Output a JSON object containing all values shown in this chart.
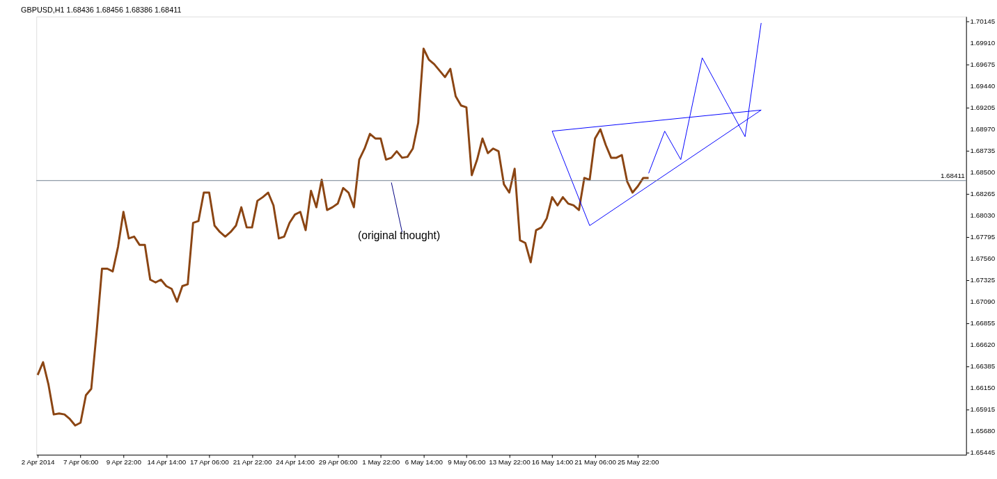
{
  "chart_data": {
    "type": "line",
    "title": "GBPUSD,H1  1.68436 1.68456 1.68386 1.68411",
    "categories": [
      "2 Apr 2014",
      null,
      null,
      null,
      null,
      null,
      null,
      null,
      "7 Apr 06:00",
      null,
      null,
      null,
      null,
      null,
      null,
      null,
      "9 Apr 22:00",
      null,
      null,
      null,
      null,
      null,
      null,
      null,
      "14 Apr 14:00",
      null,
      null,
      null,
      null,
      null,
      null,
      null,
      "17 Apr 06:00",
      null,
      null,
      null,
      null,
      null,
      null,
      null,
      "21 Apr 22:00",
      null,
      null,
      null,
      null,
      null,
      null,
      null,
      "24 Apr 14:00",
      null,
      null,
      null,
      null,
      null,
      null,
      null,
      "29 Apr 06:00",
      null,
      null,
      null,
      null,
      null,
      null,
      null,
      "1 May 22:00",
      null,
      null,
      null,
      null,
      null,
      null,
      null,
      "6 May 14:00",
      null,
      null,
      null,
      null,
      null,
      null,
      null,
      "9 May 06:00",
      null,
      null,
      null,
      null,
      null,
      null,
      null,
      "13 May 22:00",
      null,
      null,
      null,
      null,
      null,
      null,
      null,
      "16 May 14:00",
      null,
      null,
      null,
      null,
      null,
      null,
      null,
      "21 May 06:00",
      null,
      null,
      null,
      null,
      null,
      null,
      null,
      "25 May 22:00",
      null,
      null,
      null,
      null,
      null,
      null,
      null,
      null,
      null,
      null,
      null,
      null,
      null,
      null,
      null,
      null,
      null,
      null,
      null,
      null,
      null,
      null,
      null,
      null,
      null,
      null,
      null,
      null,
      null,
      null,
      null,
      null,
      null,
      null,
      null,
      null,
      null,
      null,
      null,
      null,
      null,
      null,
      null,
      null,
      null,
      null,
      null,
      null,
      null,
      null,
      null,
      null,
      null,
      null,
      null,
      null,
      null,
      null,
      null,
      null,
      null
    ],
    "ylim": [
      1.6542,
      1.702
    ],
    "yticks": [
      {
        "value": 1.65445,
        "label": "1.65445"
      },
      {
        "value": 1.6568,
        "label": "1.65680"
      },
      {
        "value": 1.65915,
        "label": "1.65915"
      },
      {
        "value": 1.6615,
        "label": "1.66150"
      },
      {
        "value": 1.66385,
        "label": "1.66385"
      },
      {
        "value": 1.6662,
        "label": "1.66620"
      },
      {
        "value": 1.66855,
        "label": "1.66855"
      },
      {
        "value": 1.6709,
        "label": "1.67090"
      },
      {
        "value": 1.67325,
        "label": "1.67325"
      },
      {
        "value": 1.6756,
        "label": "1.67560"
      },
      {
        "value": 1.67795,
        "label": "1.67795"
      },
      {
        "value": 1.6803,
        "label": "1.68030"
      },
      {
        "value": 1.68265,
        "label": "1.68265"
      },
      {
        "value": 1.685,
        "label": "1.68500"
      },
      {
        "value": 1.68735,
        "label": "1.68735"
      },
      {
        "value": 1.6897,
        "label": "1.68970"
      },
      {
        "value": 1.69205,
        "label": "1.69205"
      },
      {
        "value": 1.6944,
        "label": "1.69440"
      },
      {
        "value": 1.69675,
        "label": "1.69675"
      },
      {
        "value": 1.6991,
        "label": "1.69910"
      },
      {
        "value": 1.70145,
        "label": "1.70145"
      }
    ],
    "grid": false,
    "line_style": "solid",
    "marker": "none",
    "ref_lines": [
      {
        "axis": "y",
        "value": 1.68411,
        "label": "1.68411",
        "color": "#708090"
      }
    ],
    "annotations": [
      "(original thought)"
    ],
    "series": [
      {
        "color": "#8b4513",
        "values": [
          1.6629,
          1.6643,
          1.6619,
          1.6586,
          1.6587,
          1.6586,
          1.6581,
          1.6574,
          1.6577,
          1.6607,
          1.6614,
          1.6676,
          1.6745,
          1.6745,
          1.6742,
          1.6769,
          1.6807,
          1.6778,
          1.678,
          1.6771,
          1.6771,
          1.6733,
          1.673,
          1.6733,
          1.6726,
          1.6723,
          1.6709,
          1.6726,
          1.6728,
          1.6795,
          1.6797,
          1.6828,
          1.6828,
          1.6792,
          1.6785,
          1.678,
          1.6785,
          1.6792,
          1.6812,
          1.679,
          1.679,
          1.6819,
          1.6823,
          1.6828,
          1.6814,
          1.6778,
          1.678,
          1.6795,
          1.6804,
          1.6807,
          1.6787,
          1.683,
          1.6812,
          1.6842,
          1.6809,
          1.6812,
          1.6816,
          1.6833,
          1.6828,
          1.6812,
          1.6864,
          1.6876,
          1.6892,
          1.6887,
          1.6887,
          1.6864,
          1.6866,
          1.6873,
          1.6866,
          1.6867,
          1.6876,
          1.6904,
          1.6985,
          1.6973,
          1.6968,
          1.6961,
          1.6954,
          1.6963,
          1.6933,
          1.6923,
          1.6921,
          1.6847,
          1.6864,
          1.6887,
          1.6871,
          1.6876,
          1.6873,
          1.6837,
          1.6828,
          1.6854,
          1.6776,
          1.6773,
          1.6752,
          1.6787,
          1.679,
          1.68,
          1.6823,
          1.6814,
          1.6823,
          1.6816,
          1.6814,
          1.6809,
          1.6844,
          1.6842,
          1.6887,
          1.6897,
          1.688,
          1.6866,
          1.6866,
          1.6869,
          1.684,
          1.6828,
          1.6835,
          1.6844,
          1.6844,
          null,
          null,
          null,
          null,
          null,
          null,
          null,
          null,
          null,
          null,
          null,
          null,
          null,
          null,
          null,
          null,
          null,
          null,
          null,
          null,
          null,
          null,
          null,
          null,
          null,
          null,
          null,
          null,
          null,
          null,
          null,
          null,
          null,
          null,
          null,
          null,
          null,
          null,
          null,
          null,
          null,
          null,
          null,
          null,
          null,
          null,
          null,
          null,
          null,
          null,
          null,
          null,
          null,
          null,
          null,
          null,
          null,
          null,
          null
        ]
      },
      {
        "type": "line",
        "color": "#0000ff",
        "values": [
          null,
          null,
          null,
          null,
          null,
          null,
          null,
          null,
          null,
          null,
          null,
          null,
          null,
          null,
          null,
          null,
          null,
          null,
          null,
          null,
          null,
          null,
          null,
          null,
          null,
          null,
          null,
          null,
          null,
          null,
          null,
          null,
          null,
          null,
          null,
          null,
          null,
          null,
          null,
          null,
          null,
          null,
          null,
          null,
          null,
          null,
          null,
          null,
          null,
          null,
          null,
          null,
          null,
          null,
          null,
          null,
          null,
          null,
          null,
          null,
          null,
          null,
          null,
          null,
          null,
          null,
          null,
          null,
          null,
          null,
          null,
          null,
          null,
          null,
          null,
          null,
          null,
          null,
          null,
          null,
          null,
          null,
          null,
          null,
          null,
          null,
          null,
          null,
          null,
          null,
          null,
          null,
          null,
          null,
          null,
          null,
          1.6895,
          null,
          null,
          null,
          null,
          null,
          null,
          1.6792,
          null,
          null,
          null,
          null,
          null,
          null,
          null,
          null,
          null,
          null,
          null,
          null,
          null,
          null,
          null,
          null,
          null,
          null,
          null,
          null,
          null,
          null,
          null,
          null,
          null,
          null,
          null,
          null,
          null,
          null,
          null,
          null,
          null,
          null,
          null,
          null,
          null,
          null,
          null,
          null,
          null,
          null,
          null,
          null,
          null,
          null,
          null,
          null,
          null,
          null,
          null,
          null,
          null,
          null,
          null,
          null,
          null,
          null,
          null,
          null,
          null,
          null,
          null,
          null,
          null,
          null,
          null,
          null,
          null,
          null
        ]
      },
      {
        "type": "line",
        "color": "#0000ff",
        "values": [
          null,
          null,
          null,
          null,
          null,
          null,
          null,
          null,
          null,
          null,
          null,
          null,
          null,
          null,
          null,
          null,
          null,
          null,
          null,
          null,
          null,
          null,
          null,
          null,
          null,
          null,
          null,
          null,
          null,
          null,
          null,
          null,
          null,
          null,
          null,
          null,
          null,
          null,
          null,
          null,
          null,
          null,
          null,
          null,
          null,
          null,
          null,
          null,
          null,
          null,
          null,
          null,
          null,
          null,
          null,
          null,
          null,
          null,
          null,
          null,
          null,
          null,
          null,
          null,
          null,
          null,
          null,
          null,
          null,
          null,
          null,
          null,
          null,
          null,
          null,
          null,
          null,
          null,
          null,
          null,
          null,
          null,
          null,
          null,
          null,
          null,
          null,
          null,
          null,
          null,
          null,
          null,
          null,
          null,
          null,
          null,
          1.6895,
          null,
          null,
          null,
          null,
          null,
          null,
          null,
          null,
          null,
          null,
          null,
          null,
          null,
          null,
          null,
          null,
          null,
          null,
          null,
          null,
          null,
          null,
          null,
          null,
          null,
          null,
          null,
          null,
          null,
          null,
          null,
          null,
          null,
          null,
          null,
          null,
          null,
          null,
          1.6918,
          null,
          null,
          null,
          null,
          null,
          null,
          null,
          null,
          null,
          null,
          null,
          null,
          null,
          null,
          null,
          null,
          null,
          null,
          null,
          null,
          null,
          null,
          null,
          null,
          null,
          null,
          null,
          null,
          null,
          null,
          null,
          null,
          null,
          null,
          null,
          null,
          null,
          null
        ]
      },
      {
        "type": "line",
        "color": "#0000ff",
        "values": [
          null,
          null,
          null,
          null,
          null,
          null,
          null,
          null,
          null,
          null,
          null,
          null,
          null,
          null,
          null,
          null,
          null,
          null,
          null,
          null,
          null,
          null,
          null,
          null,
          null,
          null,
          null,
          null,
          null,
          null,
          null,
          null,
          null,
          null,
          null,
          null,
          null,
          null,
          null,
          null,
          null,
          null,
          null,
          null,
          null,
          null,
          null,
          null,
          null,
          null,
          null,
          null,
          null,
          null,
          null,
          null,
          null,
          null,
          null,
          null,
          null,
          null,
          null,
          null,
          null,
          null,
          null,
          null,
          null,
          null,
          null,
          null,
          null,
          null,
          null,
          null,
          null,
          null,
          null,
          null,
          null,
          null,
          null,
          null,
          null,
          null,
          null,
          null,
          null,
          null,
          null,
          null,
          null,
          null,
          null,
          null,
          null,
          null,
          null,
          null,
          null,
          null,
          null,
          1.6792,
          null,
          null,
          null,
          null,
          null,
          null,
          null,
          null,
          null,
          null,
          null,
          null,
          null,
          null,
          null,
          null,
          null,
          null,
          null,
          null,
          null,
          null,
          null,
          null,
          null,
          null,
          null,
          null,
          null,
          null,
          null,
          1.6918,
          null,
          null,
          null,
          null,
          null,
          null,
          null,
          null,
          null,
          null,
          null,
          null,
          null,
          null,
          null,
          null,
          null,
          null,
          null,
          null,
          null,
          null,
          null,
          null,
          null,
          null,
          null,
          null,
          null,
          null,
          null,
          null,
          null,
          null,
          null,
          null,
          null,
          null
        ]
      },
      {
        "type": "line",
        "color": "#0000ff",
        "values": [
          null,
          null,
          null,
          null,
          null,
          null,
          null,
          null,
          null,
          null,
          null,
          null,
          null,
          null,
          null,
          null,
          null,
          null,
          null,
          null,
          null,
          null,
          null,
          null,
          null,
          null,
          null,
          null,
          null,
          null,
          null,
          null,
          null,
          null,
          null,
          null,
          null,
          null,
          null,
          null,
          null,
          null,
          null,
          null,
          null,
          null,
          null,
          null,
          null,
          null,
          null,
          null,
          null,
          null,
          null,
          null,
          null,
          null,
          null,
          null,
          null,
          null,
          null,
          null,
          null,
          null,
          null,
          null,
          null,
          null,
          null,
          null,
          null,
          null,
          null,
          null,
          null,
          null,
          null,
          null,
          null,
          null,
          null,
          null,
          null,
          null,
          null,
          null,
          null,
          null,
          null,
          null,
          null,
          null,
          null,
          null,
          null,
          null,
          null,
          null,
          null,
          null,
          null,
          null,
          null,
          null,
          null,
          null,
          null,
          null,
          null,
          null,
          null,
          null,
          1.6849,
          null,
          null,
          1.6895,
          null,
          null,
          1.6864,
          null,
          null,
          null,
          1.6975,
          null,
          null,
          null,
          null,
          null,
          null,
          null,
          1.6889,
          null,
          null,
          1.7013,
          null,
          null,
          null,
          null,
          null,
          null,
          null,
          null,
          null,
          null,
          null,
          null,
          null,
          null,
          null,
          null,
          null,
          null,
          null,
          null,
          null,
          null,
          null,
          null,
          null,
          null,
          null,
          null,
          null,
          null,
          null,
          null,
          null,
          null,
          null,
          null,
          null,
          null
        ]
      },
      {
        "type": "line",
        "color": "#000080",
        "values": [
          null,
          null,
          null,
          null,
          null,
          null,
          null,
          null,
          null,
          null,
          null,
          null,
          null,
          null,
          null,
          null,
          null,
          null,
          null,
          null,
          null,
          null,
          null,
          null,
          null,
          null,
          null,
          null,
          null,
          null,
          null,
          null,
          null,
          null,
          null,
          null,
          null,
          null,
          null,
          null,
          null,
          null,
          null,
          null,
          null,
          null,
          null,
          null,
          null,
          null,
          null,
          null,
          null,
          null,
          null,
          null,
          null,
          null,
          null,
          null,
          null,
          null,
          null,
          null,
          null,
          null,
          1.6839,
          null,
          1.6785,
          null,
          null,
          null,
          null,
          null,
          null,
          null,
          null,
          null,
          null,
          null,
          null,
          null,
          null,
          null,
          null,
          null,
          null,
          null,
          null,
          null,
          null,
          null,
          null,
          null,
          null,
          null,
          null,
          null,
          null,
          null,
          null,
          null,
          null,
          null,
          null,
          null,
          null,
          null,
          null,
          null,
          null,
          null,
          null,
          null,
          null,
          null,
          null,
          null,
          null,
          null,
          null,
          null,
          null,
          null,
          null,
          null,
          null,
          null,
          null,
          null,
          null,
          null,
          null,
          null,
          null,
          null,
          null,
          null,
          null,
          null,
          null,
          null,
          null,
          null,
          null,
          null,
          null,
          null,
          null,
          null,
          null,
          null,
          null,
          null,
          null,
          null,
          null,
          null,
          null,
          null,
          null,
          null,
          null,
          null,
          null,
          null,
          null,
          null,
          null,
          null,
          null,
          null,
          null,
          null
        ]
      }
    ]
  }
}
